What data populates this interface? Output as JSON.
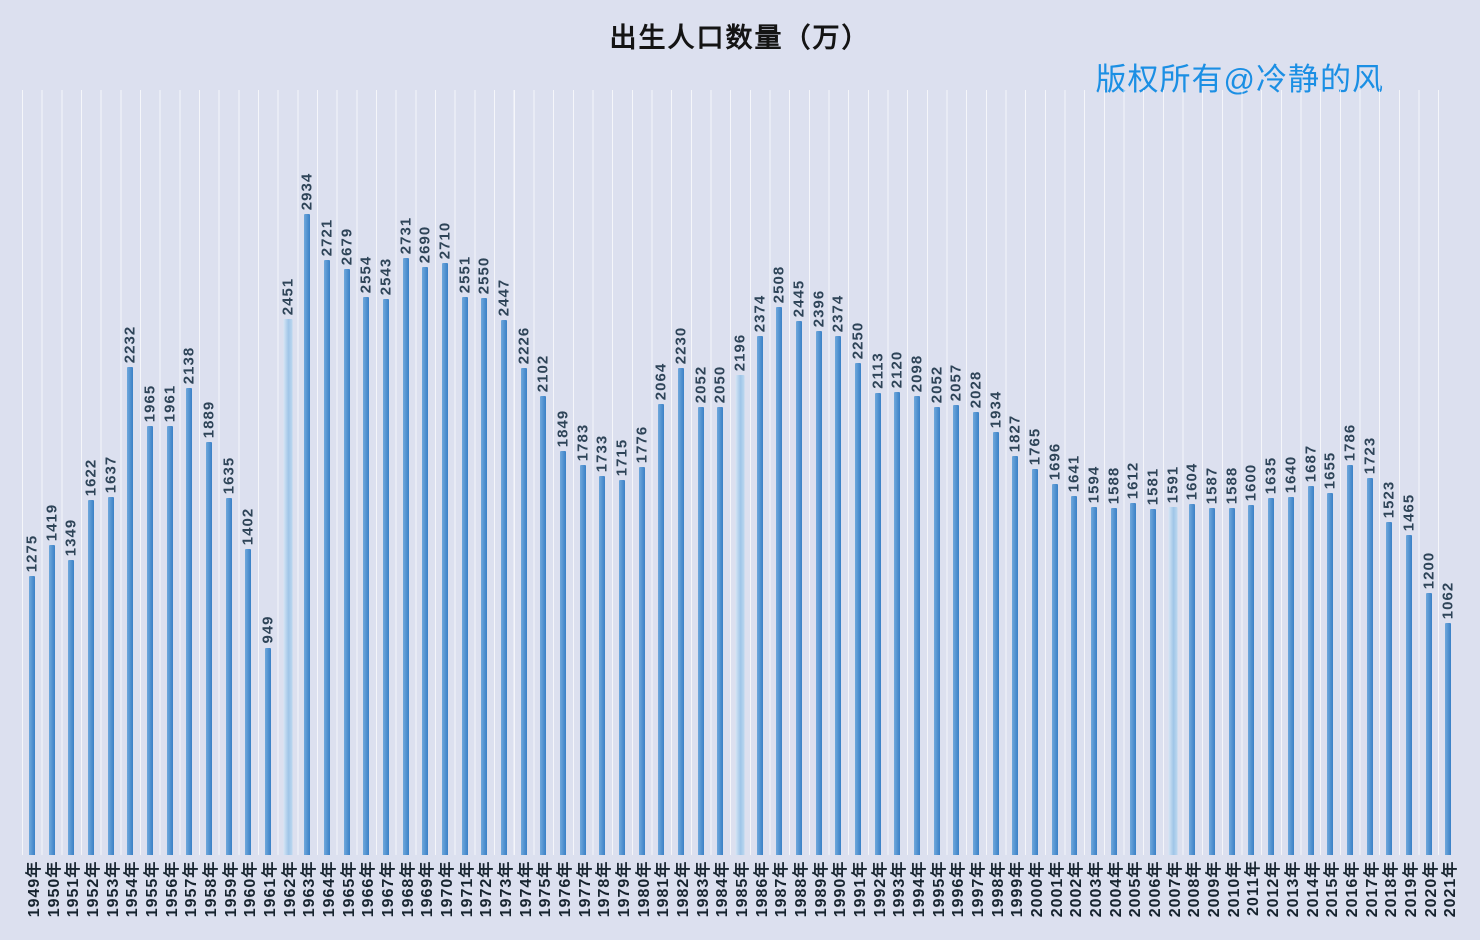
{
  "watermark": {
    "text": "版权所有@冷静的风",
    "color": "#1b8fe4"
  },
  "chart_data": {
    "type": "bar",
    "title": "出生人口数量（万）",
    "xlabel": "",
    "ylabel": "",
    "ylim": [
      0,
      3500
    ],
    "grid": "vertical-white-gridlines",
    "legend_position": "none",
    "value_labels": "rotated-90-above-bars",
    "category_labels": "rotated-90-below-axis",
    "bar_color": "#4a90d5",
    "highlight_color": "#9fc5e8",
    "background_color": "#dce0ef",
    "highlight_categories": [
      "1962年",
      "1985年",
      "2007年"
    ],
    "categories": [
      "1949年",
      "1950年",
      "1951年",
      "1952年",
      "1953年",
      "1954年",
      "1955年",
      "1956年",
      "1957年",
      "1958年",
      "1959年",
      "1960年",
      "1961年",
      "1962年",
      "1963年",
      "1964年",
      "1965年",
      "1966年",
      "1967年",
      "1968年",
      "1969年",
      "1970年",
      "1971年",
      "1972年",
      "1973年",
      "1974年",
      "1975年",
      "1976年",
      "1977年",
      "1978年",
      "1979年",
      "1980年",
      "1981年",
      "1982年",
      "1983年",
      "1984年",
      "1985年",
      "1986年",
      "1987年",
      "1988年",
      "1989年",
      "1990年",
      "1991年",
      "1992年",
      "1993年",
      "1994年",
      "1995年",
      "1996年",
      "1997年",
      "1998年",
      "1999年",
      "2000年",
      "2001年",
      "2002年",
      "2003年",
      "2004年",
      "2005年",
      "2006年",
      "2007年",
      "2008年",
      "2009年",
      "2010年",
      "2011年",
      "2012年",
      "2013年",
      "2014年",
      "2015年",
      "2016年",
      "2017年",
      "2018年",
      "2019年",
      "2020年",
      "2021年"
    ],
    "values": [
      1275,
      1419,
      1349,
      1622,
      1637,
      2232,
      1965,
      1961,
      2138,
      1889,
      1635,
      1402,
      949,
      2451,
      2934,
      2721,
      2679,
      2554,
      2543,
      2731,
      2690,
      2710,
      2551,
      2550,
      2447,
      2226,
      2102,
      1849,
      1783,
      1733,
      1715,
      1776,
      2064,
      2230,
      2052,
      2050,
      2196,
      2374,
      2508,
      2445,
      2396,
      2374,
      2250,
      2113,
      2120,
      2098,
      2052,
      2057,
      2028,
      1934,
      1827,
      1765,
      1696,
      1641,
      1594,
      1588,
      1612,
      1581,
      1591,
      1604,
      1587,
      1588,
      1600,
      1635,
      1640,
      1687,
      1655,
      1786,
      1723,
      1523,
      1465,
      1200,
      1062
    ]
  }
}
